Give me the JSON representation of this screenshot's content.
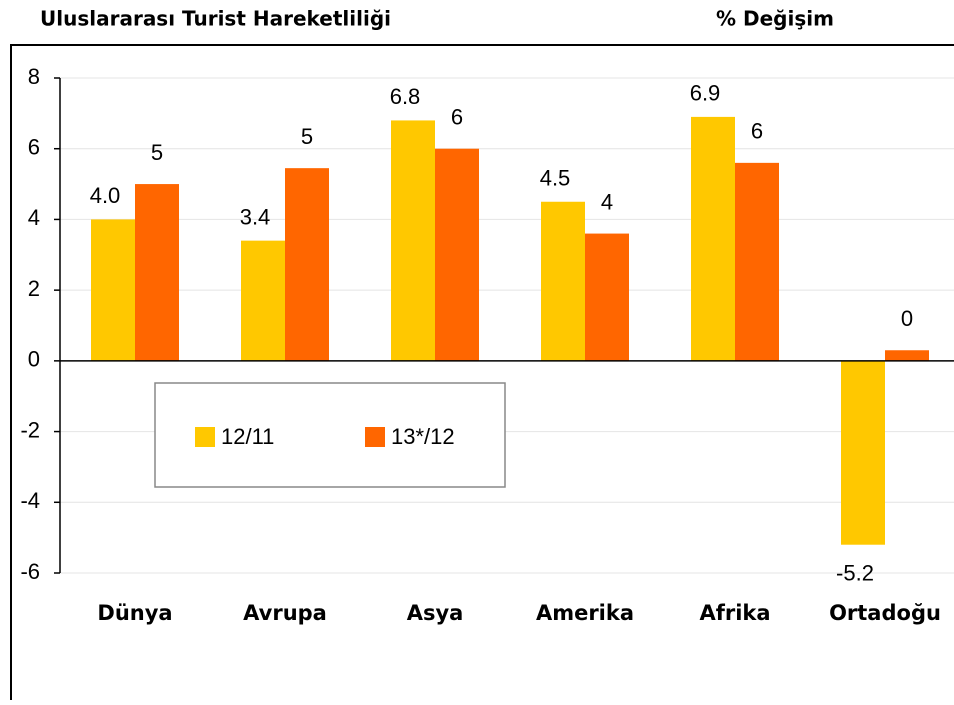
{
  "chart_data": {
    "type": "bar",
    "title": "Uluslararası Turist Hareketliliği",
    "subtitle": "% Değişim",
    "categories": [
      "Dünya",
      "Avrupa",
      "Asya",
      "Amerika",
      "Afrika",
      "Ortadoğu"
    ],
    "series": [
      {
        "name": "12/11",
        "color": "#ffc800",
        "values": [
          4.0,
          3.4,
          6.8,
          4.5,
          6.9,
          -5.2
        ],
        "value_labels": [
          "4.0",
          "3.4",
          "6.8",
          "4.5",
          "6.9",
          "-5.2"
        ]
      },
      {
        "name": "13*/12",
        "color": "#ff6600",
        "values": [
          5.0,
          5.45,
          6.0,
          3.6,
          5.6,
          0.3
        ],
        "value_labels": [
          "5",
          "5",
          "6",
          "4",
          "6",
          "0"
        ]
      }
    ],
    "ylim": [
      -6,
      8
    ],
    "yticks": [
      -6,
      -4,
      -2,
      0,
      2,
      4,
      6,
      8
    ],
    "grid": true
  }
}
